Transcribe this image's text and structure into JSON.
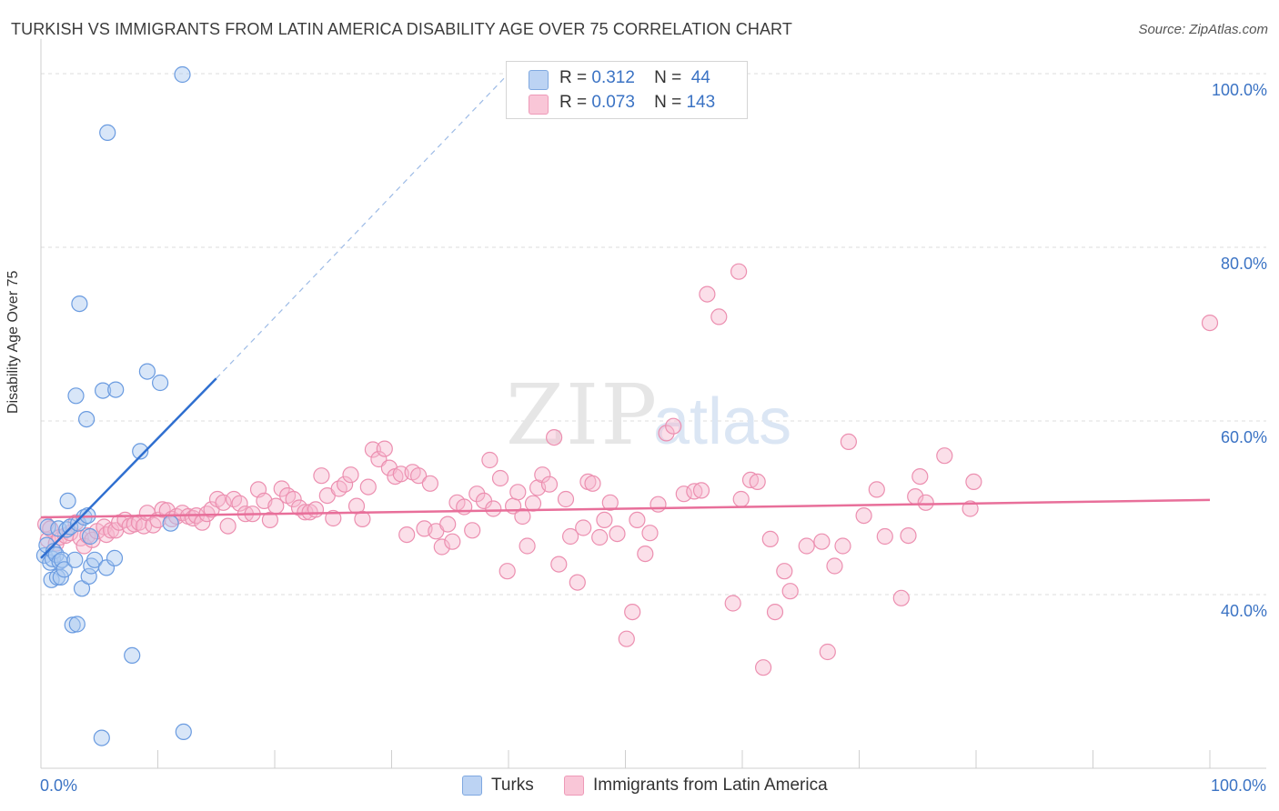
{
  "title": "TURKISH VS IMMIGRANTS FROM LATIN AMERICA DISABILITY AGE OVER 75 CORRELATION CHART",
  "source": "Source: ZipAtlas.com",
  "watermark": {
    "zip": "ZIP",
    "atlas": "atlas"
  },
  "legend_top": {
    "rows": [
      {
        "r_label": "R =",
        "r_value": "0.312",
        "n_label": "N =",
        "n_value": "44",
        "color": "#a9c8f0"
      },
      {
        "r_label": "R =",
        "r_value": "0.073",
        "n_label": "N =",
        "n_value": "143",
        "color": "#f7b8ce"
      }
    ]
  },
  "legend_bottom": [
    {
      "label": "Turks",
      "color": "#a9c8f0"
    },
    {
      "label": "Immigrants from Latin America",
      "color": "#f7b8ce"
    }
  ],
  "colors": {
    "turks_fill": "#a9c8f0",
    "turks_stroke": "#6a9be0",
    "turks_line": "#2f6fd0",
    "latin_fill": "#f7b8ce",
    "latin_stroke": "#ec8fb0",
    "latin_line": "#e86f9a",
    "tick_label": "#3b73c4",
    "grid": "#dcdcdc"
  },
  "chart_data": {
    "type": "scatter",
    "ylabel": "Disability Age Over 75",
    "xlabel": "",
    "xlim": [
      0,
      100
    ],
    "ylim": [
      18,
      104
    ],
    "x_tick_labels": [
      {
        "value": 0,
        "label": "0.0%"
      },
      {
        "value": 100,
        "label": "100.0%"
      }
    ],
    "y_tick_labels": [
      {
        "value": 40,
        "label": "40.0%"
      },
      {
        "value": 60,
        "label": "60.0%"
      },
      {
        "value": 80,
        "label": "80.0%"
      },
      {
        "value": 100,
        "label": "100.0%"
      }
    ],
    "grid": true,
    "series": [
      {
        "name": "Turks",
        "r": 0.312,
        "n": 44,
        "trend": {
          "x": [
            0,
            15
          ],
          "y": [
            44.2,
            64.9
          ],
          "dashed_to": [
            40,
            100
          ]
        },
        "points": [
          [
            0.3,
            44.5
          ],
          [
            0.5,
            45.7
          ],
          [
            0.6,
            47.8
          ],
          [
            0.8,
            43.7
          ],
          [
            0.9,
            41.7
          ],
          [
            1.0,
            44.1
          ],
          [
            1.1,
            45.0
          ],
          [
            1.3,
            44.6
          ],
          [
            1.4,
            42.0
          ],
          [
            1.5,
            47.6
          ],
          [
            1.6,
            43.8
          ],
          [
            1.7,
            42.0
          ],
          [
            1.8,
            44.0
          ],
          [
            2.0,
            42.9
          ],
          [
            2.2,
            47.5
          ],
          [
            2.3,
            50.8
          ],
          [
            2.5,
            47.8
          ],
          [
            2.7,
            36.5
          ],
          [
            2.9,
            44.0
          ],
          [
            3.0,
            62.9
          ],
          [
            3.1,
            36.6
          ],
          [
            3.2,
            48.2
          ],
          [
            3.3,
            73.5
          ],
          [
            3.5,
            40.7
          ],
          [
            3.7,
            48.9
          ],
          [
            3.9,
            60.2
          ],
          [
            4.0,
            49.1
          ],
          [
            4.1,
            42.1
          ],
          [
            4.2,
            46.7
          ],
          [
            4.3,
            43.3
          ],
          [
            4.6,
            44.0
          ],
          [
            5.2,
            23.5
          ],
          [
            5.3,
            63.5
          ],
          [
            5.6,
            43.1
          ],
          [
            5.7,
            93.2
          ],
          [
            6.3,
            44.2
          ],
          [
            6.4,
            63.6
          ],
          [
            7.8,
            33.0
          ],
          [
            8.5,
            56.5
          ],
          [
            9.1,
            65.7
          ],
          [
            10.2,
            64.4
          ],
          [
            11.1,
            48.2
          ],
          [
            12.1,
            99.9
          ],
          [
            12.2,
            24.2
          ]
        ]
      },
      {
        "name": "Immigrants from Latin America",
        "r": 0.073,
        "n": 143,
        "trend": {
          "x": [
            0,
            100
          ],
          "y": [
            48.9,
            50.9
          ]
        },
        "points": [
          [
            0.4,
            48.1
          ],
          [
            0.6,
            46.3
          ],
          [
            0.8,
            47.6
          ],
          [
            1.3,
            45.9
          ],
          [
            1.6,
            46.6
          ],
          [
            2.1,
            46.8
          ],
          [
            2.5,
            47.1
          ],
          [
            3.0,
            48.3
          ],
          [
            3.4,
            46.5
          ],
          [
            3.7,
            45.6
          ],
          [
            4.0,
            46.8
          ],
          [
            4.4,
            46.3
          ],
          [
            4.8,
            47.3
          ],
          [
            5.4,
            47.8
          ],
          [
            5.6,
            46.9
          ],
          [
            6.0,
            47.4
          ],
          [
            6.4,
            47.4
          ],
          [
            6.7,
            48.3
          ],
          [
            7.2,
            48.6
          ],
          [
            7.6,
            47.9
          ],
          [
            8.0,
            48.1
          ],
          [
            8.4,
            48.3
          ],
          [
            8.8,
            47.9
          ],
          [
            9.1,
            49.4
          ],
          [
            9.6,
            48.0
          ],
          [
            10.0,
            48.6
          ],
          [
            10.4,
            49.8
          ],
          [
            10.8,
            49.7
          ],
          [
            11.2,
            48.7
          ],
          [
            11.6,
            49.0
          ],
          [
            12.1,
            49.4
          ],
          [
            12.6,
            49.0
          ],
          [
            13.0,
            48.8
          ],
          [
            13.3,
            49.1
          ],
          [
            13.8,
            48.3
          ],
          [
            14.2,
            49.3
          ],
          [
            14.6,
            49.8
          ],
          [
            15.1,
            51.0
          ],
          [
            15.6,
            50.6
          ],
          [
            16.0,
            47.9
          ],
          [
            16.5,
            51.0
          ],
          [
            17.0,
            50.5
          ],
          [
            17.5,
            49.3
          ],
          [
            18.1,
            49.3
          ],
          [
            18.6,
            52.1
          ],
          [
            19.1,
            50.8
          ],
          [
            19.6,
            48.6
          ],
          [
            20.1,
            50.2
          ],
          [
            20.6,
            52.2
          ],
          [
            21.1,
            51.4
          ],
          [
            21.6,
            51.0
          ],
          [
            22.1,
            50.0
          ],
          [
            22.6,
            49.5
          ],
          [
            23.0,
            49.5
          ],
          [
            23.5,
            49.8
          ],
          [
            24.0,
            53.7
          ],
          [
            24.5,
            51.4
          ],
          [
            25.0,
            48.8
          ],
          [
            25.5,
            52.2
          ],
          [
            26.0,
            52.7
          ],
          [
            26.5,
            53.8
          ],
          [
            27.0,
            50.2
          ],
          [
            27.5,
            48.7
          ],
          [
            28.0,
            52.4
          ],
          [
            28.4,
            56.7
          ],
          [
            28.9,
            55.6
          ],
          [
            29.4,
            56.8
          ],
          [
            29.8,
            54.6
          ],
          [
            30.3,
            53.6
          ],
          [
            30.8,
            53.9
          ],
          [
            31.3,
            46.9
          ],
          [
            31.8,
            54.1
          ],
          [
            32.3,
            53.7
          ],
          [
            32.8,
            47.6
          ],
          [
            33.3,
            52.8
          ],
          [
            33.8,
            47.3
          ],
          [
            34.3,
            45.5
          ],
          [
            34.8,
            48.1
          ],
          [
            35.2,
            46.1
          ],
          [
            35.6,
            50.6
          ],
          [
            36.2,
            50.1
          ],
          [
            36.9,
            47.4
          ],
          [
            37.3,
            51.6
          ],
          [
            37.9,
            50.8
          ],
          [
            38.4,
            55.5
          ],
          [
            38.7,
            49.9
          ],
          [
            39.3,
            53.4
          ],
          [
            39.9,
            42.7
          ],
          [
            40.4,
            50.2
          ],
          [
            40.8,
            51.8
          ],
          [
            41.2,
            49.0
          ],
          [
            41.6,
            45.6
          ],
          [
            42.1,
            50.5
          ],
          [
            42.5,
            52.3
          ],
          [
            42.9,
            53.8
          ],
          [
            43.5,
            52.7
          ],
          [
            43.9,
            58.1
          ],
          [
            44.3,
            43.5
          ],
          [
            44.9,
            51.0
          ],
          [
            45.3,
            46.7
          ],
          [
            45.9,
            41.4
          ],
          [
            46.4,
            47.7
          ],
          [
            46.8,
            53.0
          ],
          [
            47.2,
            52.8
          ],
          [
            47.8,
            46.6
          ],
          [
            48.2,
            48.6
          ],
          [
            48.7,
            50.6
          ],
          [
            49.3,
            47.0
          ],
          [
            50.1,
            34.9
          ],
          [
            50.6,
            38.0
          ],
          [
            51.0,
            48.6
          ],
          [
            51.7,
            44.7
          ],
          [
            52.1,
            47.1
          ],
          [
            52.8,
            50.4
          ],
          [
            53.5,
            58.6
          ],
          [
            54.1,
            59.4
          ],
          [
            55.0,
            51.6
          ],
          [
            55.9,
            51.9
          ],
          [
            56.5,
            52.0
          ],
          [
            57.0,
            74.6
          ],
          [
            58.0,
            72.0
          ],
          [
            59.2,
            39.0
          ],
          [
            59.7,
            77.2
          ],
          [
            59.9,
            51.0
          ],
          [
            60.7,
            53.2
          ],
          [
            61.3,
            53.0
          ],
          [
            61.8,
            31.6
          ],
          [
            62.4,
            46.4
          ],
          [
            62.8,
            38.0
          ],
          [
            63.6,
            42.7
          ],
          [
            64.1,
            40.4
          ],
          [
            65.5,
            45.6
          ],
          [
            66.8,
            46.1
          ],
          [
            67.3,
            33.4
          ],
          [
            67.9,
            43.3
          ],
          [
            68.6,
            45.6
          ],
          [
            69.1,
            57.6
          ],
          [
            70.4,
            49.1
          ],
          [
            71.5,
            52.1
          ],
          [
            72.2,
            46.7
          ],
          [
            73.6,
            39.6
          ],
          [
            74.2,
            46.8
          ],
          [
            74.8,
            51.3
          ],
          [
            75.2,
            53.6
          ],
          [
            75.7,
            50.6
          ],
          [
            77.3,
            56.0
          ],
          [
            79.5,
            49.9
          ],
          [
            79.8,
            53.0
          ],
          [
            100.0,
            71.3
          ]
        ]
      }
    ]
  }
}
